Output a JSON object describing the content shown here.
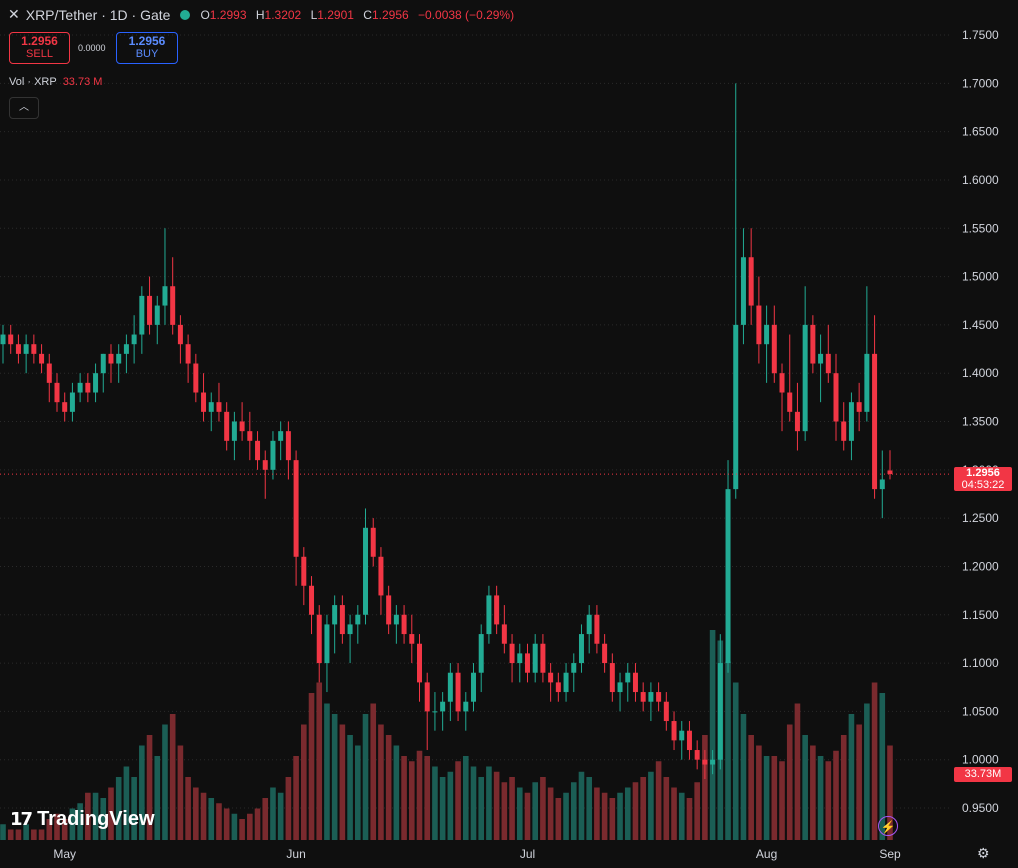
{
  "header": {
    "close_icon": "close-icon",
    "symbol": "XRP/Tether · 1D · Gate",
    "ohlc": {
      "o_label": "O",
      "o": "1.2993",
      "h_label": "H",
      "h": "1.3202",
      "l_label": "L",
      "l": "1.2901",
      "c_label": "C",
      "c": "1.2956",
      "change": "−0.0038 (−0.29%)"
    }
  },
  "trade": {
    "sell_price": "1.2956",
    "sell_label": "SELL",
    "spread": "0.0000",
    "buy_price": "1.2956",
    "buy_label": "BUY"
  },
  "volume_legend": {
    "label": "Vol · XRP",
    "value": "33.73 M"
  },
  "price_tag": {
    "price": "1.2956",
    "countdown": "04:53:22"
  },
  "volume_tag": "33.73M",
  "branding": {
    "logo_text": "TradingView"
  },
  "colors": {
    "up": "#22ab94",
    "down": "#f23645",
    "background": "#0f0f0f",
    "grid": "#2a2a2a"
  },
  "chart_data": {
    "type": "candlestick",
    "timeframe": "1D",
    "price_axis_ticks": [
      "1.7500",
      "1.7000",
      "1.6500",
      "1.6000",
      "1.5500",
      "1.5000",
      "1.4500",
      "1.4000",
      "1.3500",
      "1.3000",
      "1.2500",
      "1.2000",
      "1.1500",
      "1.1000",
      "1.0500",
      "1.0000",
      "0.9500"
    ],
    "time_axis_labels": [
      "May",
      "Jun",
      "Jul",
      "Aug",
      "Sep"
    ],
    "ylim": [
      0.93,
      1.77
    ],
    "last_price": 1.2956,
    "candles": [
      [
        1.43,
        1.45,
        1.41,
        1.44
      ],
      [
        1.44,
        1.45,
        1.42,
        1.43
      ],
      [
        1.43,
        1.44,
        1.41,
        1.42
      ],
      [
        1.42,
        1.44,
        1.4,
        1.43
      ],
      [
        1.43,
        1.44,
        1.41,
        1.42
      ],
      [
        1.42,
        1.43,
        1.4,
        1.41
      ],
      [
        1.41,
        1.42,
        1.37,
        1.39
      ],
      [
        1.39,
        1.4,
        1.36,
        1.37
      ],
      [
        1.37,
        1.38,
        1.35,
        1.36
      ],
      [
        1.36,
        1.39,
        1.35,
        1.38
      ],
      [
        1.38,
        1.4,
        1.37,
        1.39
      ],
      [
        1.39,
        1.4,
        1.37,
        1.38
      ],
      [
        1.38,
        1.41,
        1.37,
        1.4
      ],
      [
        1.4,
        1.42,
        1.38,
        1.42
      ],
      [
        1.42,
        1.43,
        1.39,
        1.41
      ],
      [
        1.41,
        1.43,
        1.39,
        1.42
      ],
      [
        1.42,
        1.44,
        1.4,
        1.43
      ],
      [
        1.43,
        1.46,
        1.41,
        1.44
      ],
      [
        1.44,
        1.49,
        1.42,
        1.48
      ],
      [
        1.48,
        1.5,
        1.44,
        1.45
      ],
      [
        1.45,
        1.48,
        1.43,
        1.47
      ],
      [
        1.47,
        1.55,
        1.45,
        1.49
      ],
      [
        1.49,
        1.52,
        1.44,
        1.45
      ],
      [
        1.45,
        1.46,
        1.41,
        1.43
      ],
      [
        1.43,
        1.44,
        1.39,
        1.41
      ],
      [
        1.41,
        1.42,
        1.37,
        1.38
      ],
      [
        1.38,
        1.4,
        1.35,
        1.36
      ],
      [
        1.36,
        1.38,
        1.34,
        1.37
      ],
      [
        1.37,
        1.39,
        1.35,
        1.36
      ],
      [
        1.36,
        1.37,
        1.32,
        1.33
      ],
      [
        1.33,
        1.36,
        1.31,
        1.35
      ],
      [
        1.35,
        1.37,
        1.33,
        1.34
      ],
      [
        1.34,
        1.36,
        1.31,
        1.33
      ],
      [
        1.33,
        1.34,
        1.3,
        1.31
      ],
      [
        1.31,
        1.32,
        1.27,
        1.3
      ],
      [
        1.3,
        1.34,
        1.29,
        1.33
      ],
      [
        1.33,
        1.35,
        1.31,
        1.34
      ],
      [
        1.34,
        1.35,
        1.29,
        1.31
      ],
      [
        1.31,
        1.32,
        1.18,
        1.21
      ],
      [
        1.21,
        1.22,
        1.16,
        1.18
      ],
      [
        1.18,
        1.19,
        1.13,
        1.15
      ],
      [
        1.15,
        1.16,
        1.08,
        1.1
      ],
      [
        1.1,
        1.15,
        1.07,
        1.14
      ],
      [
        1.14,
        1.17,
        1.11,
        1.16
      ],
      [
        1.16,
        1.17,
        1.12,
        1.13
      ],
      [
        1.13,
        1.15,
        1.1,
        1.14
      ],
      [
        1.14,
        1.16,
        1.12,
        1.15
      ],
      [
        1.15,
        1.26,
        1.14,
        1.24
      ],
      [
        1.24,
        1.25,
        1.2,
        1.21
      ],
      [
        1.21,
        1.22,
        1.15,
        1.17
      ],
      [
        1.17,
        1.18,
        1.13,
        1.14
      ],
      [
        1.14,
        1.16,
        1.12,
        1.15
      ],
      [
        1.15,
        1.16,
        1.12,
        1.13
      ],
      [
        1.13,
        1.15,
        1.1,
        1.12
      ],
      [
        1.12,
        1.13,
        1.06,
        1.08
      ],
      [
        1.08,
        1.09,
        1.01,
        1.05
      ],
      [
        1.05,
        1.07,
        1.03,
        1.05
      ],
      [
        1.05,
        1.07,
        1.03,
        1.06
      ],
      [
        1.06,
        1.1,
        1.04,
        1.09
      ],
      [
        1.09,
        1.1,
        1.04,
        1.05
      ],
      [
        1.05,
        1.07,
        1.03,
        1.06
      ],
      [
        1.06,
        1.1,
        1.05,
        1.09
      ],
      [
        1.09,
        1.14,
        1.07,
        1.13
      ],
      [
        1.13,
        1.18,
        1.12,
        1.17
      ],
      [
        1.17,
        1.18,
        1.13,
        1.14
      ],
      [
        1.14,
        1.16,
        1.11,
        1.12
      ],
      [
        1.12,
        1.13,
        1.08,
        1.1
      ],
      [
        1.1,
        1.12,
        1.08,
        1.11
      ],
      [
        1.11,
        1.12,
        1.08,
        1.09
      ],
      [
        1.09,
        1.13,
        1.08,
        1.12
      ],
      [
        1.12,
        1.13,
        1.08,
        1.09
      ],
      [
        1.09,
        1.1,
        1.06,
        1.08
      ],
      [
        1.08,
        1.09,
        1.06,
        1.07
      ],
      [
        1.07,
        1.1,
        1.06,
        1.09
      ],
      [
        1.09,
        1.11,
        1.07,
        1.1
      ],
      [
        1.1,
        1.14,
        1.09,
        1.13
      ],
      [
        1.13,
        1.16,
        1.11,
        1.15
      ],
      [
        1.15,
        1.16,
        1.11,
        1.12
      ],
      [
        1.12,
        1.13,
        1.09,
        1.1
      ],
      [
        1.1,
        1.11,
        1.06,
        1.07
      ],
      [
        1.07,
        1.09,
        1.05,
        1.08
      ],
      [
        1.08,
        1.1,
        1.06,
        1.09
      ],
      [
        1.09,
        1.1,
        1.06,
        1.07
      ],
      [
        1.07,
        1.08,
        1.05,
        1.06
      ],
      [
        1.06,
        1.08,
        1.04,
        1.07
      ],
      [
        1.07,
        1.08,
        1.05,
        1.06
      ],
      [
        1.06,
        1.07,
        1.03,
        1.04
      ],
      [
        1.04,
        1.05,
        1.01,
        1.02
      ],
      [
        1.02,
        1.04,
        1.0,
        1.03
      ],
      [
        1.03,
        1.04,
        1.0,
        1.01
      ],
      [
        1.01,
        1.02,
        0.99,
        1.0
      ],
      [
        1.0,
        1.01,
        0.98,
        0.995
      ],
      [
        0.995,
        1.01,
        0.985,
        1.0
      ],
      [
        1.0,
        1.13,
        0.99,
        1.1
      ],
      [
        1.1,
        1.31,
        1.09,
        1.28
      ],
      [
        1.28,
        1.7,
        1.27,
        1.45
      ],
      [
        1.45,
        1.55,
        1.43,
        1.52
      ],
      [
        1.52,
        1.55,
        1.45,
        1.47
      ],
      [
        1.47,
        1.5,
        1.41,
        1.43
      ],
      [
        1.43,
        1.47,
        1.39,
        1.45
      ],
      [
        1.45,
        1.47,
        1.39,
        1.4
      ],
      [
        1.4,
        1.41,
        1.34,
        1.38
      ],
      [
        1.38,
        1.44,
        1.35,
        1.36
      ],
      [
        1.36,
        1.39,
        1.32,
        1.34
      ],
      [
        1.34,
        1.49,
        1.33,
        1.45
      ],
      [
        1.45,
        1.46,
        1.4,
        1.41
      ],
      [
        1.41,
        1.44,
        1.37,
        1.42
      ],
      [
        1.42,
        1.45,
        1.39,
        1.4
      ],
      [
        1.4,
        1.42,
        1.33,
        1.35
      ],
      [
        1.35,
        1.37,
        1.32,
        1.33
      ],
      [
        1.33,
        1.38,
        1.31,
        1.37
      ],
      [
        1.37,
        1.39,
        1.34,
        1.36
      ],
      [
        1.36,
        1.49,
        1.35,
        1.42
      ],
      [
        1.42,
        1.46,
        1.27,
        1.28
      ],
      [
        1.28,
        1.32,
        1.25,
        1.29
      ],
      [
        1.2993,
        1.3202,
        1.2901,
        1.2956
      ]
    ],
    "volumes": [
      3,
      2,
      2,
      3,
      2,
      2,
      4,
      5,
      4,
      6,
      7,
      9,
      9,
      8,
      10,
      12,
      14,
      12,
      18,
      20,
      16,
      22,
      24,
      18,
      12,
      10,
      9,
      8,
      7,
      6,
      5,
      4,
      5,
      6,
      8,
      10,
      9,
      12,
      16,
      22,
      28,
      30,
      26,
      24,
      22,
      20,
      18,
      24,
      26,
      22,
      20,
      18,
      16,
      15,
      17,
      16,
      14,
      12,
      13,
      15,
      16,
      14,
      12,
      14,
      13,
      11,
      12,
      10,
      9,
      11,
      12,
      10,
      8,
      9,
      11,
      13,
      12,
      10,
      9,
      8,
      9,
      10,
      11,
      12,
      13,
      15,
      12,
      10,
      9,
      8,
      11,
      20,
      40,
      38,
      34,
      30,
      24,
      20,
      18,
      16,
      16,
      15,
      22,
      26,
      20,
      18,
      16,
      15,
      17,
      20,
      24,
      22,
      26,
      30,
      28,
      18
    ]
  }
}
